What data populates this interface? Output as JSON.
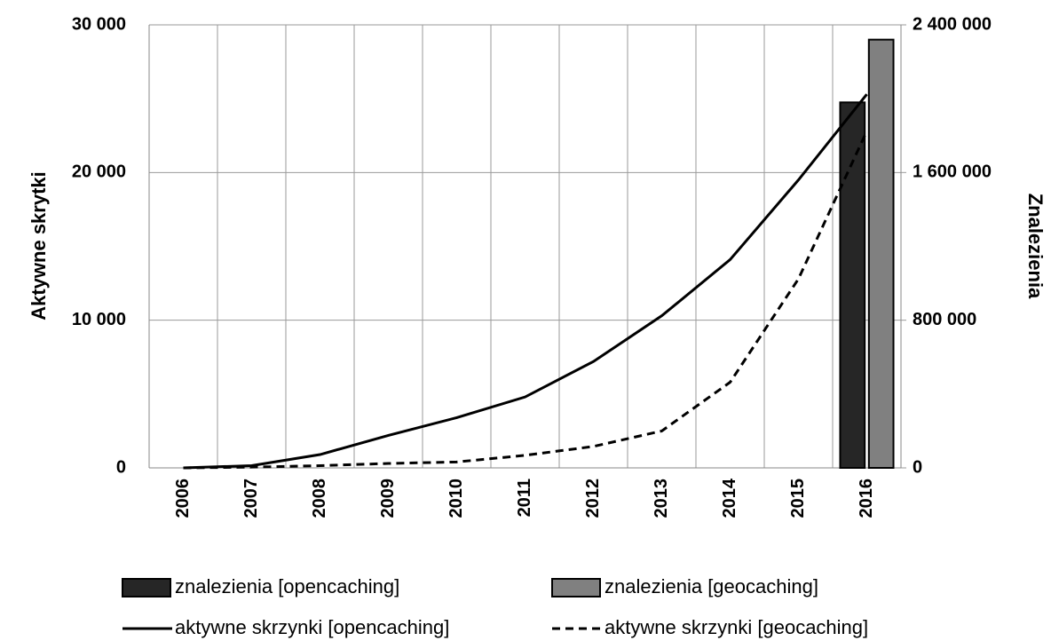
{
  "chart_data": {
    "type": "combo",
    "categories": [
      "2006",
      "2007",
      "2008",
      "2009",
      "2010",
      "2011",
      "2012",
      "2013",
      "2014",
      "2015",
      "2016"
    ],
    "ylabel": "Aktywne skrytki",
    "y2label": "Znalezienia",
    "ylim": [
      0,
      30000
    ],
    "yticks": [
      0,
      {
        "value": 10000,
        "label": "10 000"
      },
      {
        "value": 20000,
        "label": "20 000"
      },
      {
        "value": 30000,
        "label": "30 000"
      }
    ],
    "y2lim": [
      0,
      2400000
    ],
    "y2ticks": [
      0,
      {
        "value": 800000,
        "label": "800 000"
      },
      {
        "value": 1600000,
        "label": "1 600 000"
      },
      {
        "value": 2400000,
        "label": "2 400 000"
      }
    ],
    "grid": true,
    "legend": "bottom",
    "series": [
      {
        "name": "znalezienia [opencaching]",
        "type": "bar",
        "axis": "y2",
        "color": "#262626",
        "values": [
          null,
          null,
          null,
          null,
          null,
          null,
          null,
          null,
          null,
          null,
          1980000
        ]
      },
      {
        "name": "znalezienia [geocaching]",
        "type": "bar",
        "axis": "y2",
        "color": "#808080",
        "values": [
          null,
          null,
          null,
          null,
          null,
          null,
          null,
          null,
          null,
          null,
          2320000
        ]
      },
      {
        "name": "aktywne skrzynki [opencaching]",
        "type": "line",
        "color": "#000000",
        "dash": "solid",
        "values": [
          0,
          150,
          900,
          2200,
          3400,
          4800,
          7200,
          10300,
          14100,
          19500,
          25300
        ]
      },
      {
        "name": "aktywne skrzynki [geocaching]",
        "type": "line",
        "color": "#000000",
        "dash": "dashed",
        "values": [
          0,
          50,
          150,
          300,
          400,
          850,
          1450,
          2500,
          5800,
          12800,
          22800
        ]
      }
    ]
  }
}
